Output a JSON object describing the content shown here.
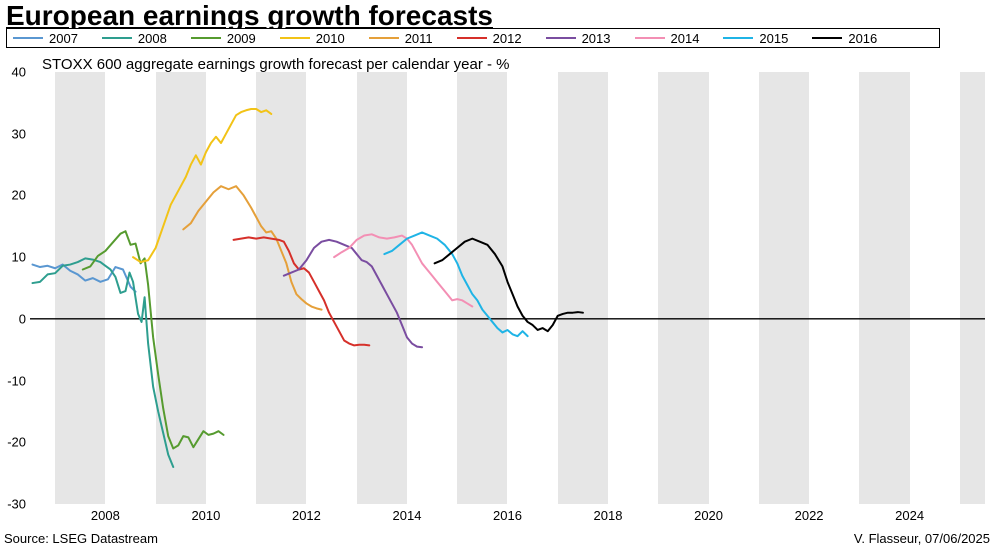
{
  "title": "European earnings growth forecasts",
  "subtitle": "STOXX 600 aggregate earnings growth forecast per calendar year - %",
  "footer_left": "Source: LSEG Datastream",
  "footer_right": "V. Flasseur, 07/06/2025",
  "chart": {
    "type": "line",
    "background_color": "#ffffff",
    "band_color": "#e6e6e6",
    "axis_color": "#000000",
    "zero_line_color": "#000000",
    "zero_line_width": 1.4,
    "line_width": 2,
    "title_fontsize": 28,
    "subtitle_fontsize": 15,
    "tick_fontsize": 13,
    "footer_fontsize": 13,
    "x_domain": [
      2006.5,
      2025.5
    ],
    "y_domain": [
      -30,
      40
    ],
    "y_ticks": [
      -30,
      -20,
      -10,
      0,
      10,
      20,
      30,
      40
    ],
    "x_ticks": [
      2008,
      2010,
      2012,
      2014,
      2016,
      2018,
      2020,
      2022,
      2024
    ],
    "x_bands_start": 2007,
    "series": [
      {
        "name": "2007",
        "color": "#5a97d1",
        "points": [
          [
            2006.55,
            8.8
          ],
          [
            2006.7,
            8.4
          ],
          [
            2006.85,
            8.6
          ],
          [
            2007.0,
            8.2
          ],
          [
            2007.15,
            8.8
          ],
          [
            2007.3,
            7.8
          ],
          [
            2007.45,
            7.2
          ],
          [
            2007.6,
            6.2
          ],
          [
            2007.75,
            6.6
          ],
          [
            2007.9,
            6.0
          ],
          [
            2008.05,
            6.4
          ],
          [
            2008.2,
            8.4
          ],
          [
            2008.35,
            8.0
          ],
          [
            2008.5,
            5.2
          ],
          [
            2008.6,
            4.4
          ]
        ]
      },
      {
        "name": "2008",
        "color": "#2e9e8f",
        "points": [
          [
            2006.55,
            5.8
          ],
          [
            2006.7,
            6.0
          ],
          [
            2006.85,
            7.2
          ],
          [
            2007.0,
            7.4
          ],
          [
            2007.15,
            8.6
          ],
          [
            2007.3,
            8.8
          ],
          [
            2007.45,
            9.2
          ],
          [
            2007.6,
            9.8
          ],
          [
            2007.75,
            9.6
          ],
          [
            2007.9,
            9.2
          ],
          [
            2008.0,
            8.6
          ],
          [
            2008.1,
            8.0
          ],
          [
            2008.2,
            6.8
          ],
          [
            2008.3,
            4.2
          ],
          [
            2008.4,
            4.5
          ],
          [
            2008.48,
            7.5
          ],
          [
            2008.55,
            6.0
          ],
          [
            2008.65,
            0.8
          ],
          [
            2008.72,
            -0.5
          ],
          [
            2008.78,
            3.5
          ],
          [
            2008.85,
            -4.0
          ],
          [
            2008.95,
            -11.0
          ],
          [
            2009.05,
            -15.0
          ],
          [
            2009.15,
            -18.5
          ],
          [
            2009.25,
            -22.0
          ],
          [
            2009.35,
            -24.0
          ]
        ]
      },
      {
        "name": "2009",
        "color": "#569b2f",
        "points": [
          [
            2007.55,
            8.0
          ],
          [
            2007.7,
            8.5
          ],
          [
            2007.85,
            10.2
          ],
          [
            2008.0,
            11.0
          ],
          [
            2008.15,
            12.4
          ],
          [
            2008.3,
            13.8
          ],
          [
            2008.4,
            14.2
          ],
          [
            2008.5,
            12.0
          ],
          [
            2008.6,
            12.2
          ],
          [
            2008.7,
            9.0
          ],
          [
            2008.78,
            9.8
          ],
          [
            2008.85,
            5.5
          ],
          [
            2008.95,
            -3.0
          ],
          [
            2009.05,
            -9.0
          ],
          [
            2009.15,
            -14.5
          ],
          [
            2009.25,
            -19.0
          ],
          [
            2009.35,
            -21.0
          ],
          [
            2009.45,
            -20.5
          ],
          [
            2009.55,
            -19.0
          ],
          [
            2009.65,
            -19.2
          ],
          [
            2009.75,
            -20.8
          ],
          [
            2009.85,
            -19.5
          ],
          [
            2009.95,
            -18.2
          ],
          [
            2010.05,
            -18.8
          ],
          [
            2010.15,
            -18.6
          ],
          [
            2010.25,
            -18.2
          ],
          [
            2010.35,
            -18.8
          ]
        ]
      },
      {
        "name": "2010",
        "color": "#f2c317",
        "points": [
          [
            2008.55,
            10.0
          ],
          [
            2008.7,
            9.2
          ],
          [
            2008.85,
            9.5
          ],
          [
            2009.0,
            11.5
          ],
          [
            2009.15,
            15.0
          ],
          [
            2009.3,
            18.5
          ],
          [
            2009.4,
            20.0
          ],
          [
            2009.5,
            21.5
          ],
          [
            2009.6,
            23.0
          ],
          [
            2009.7,
            25.0
          ],
          [
            2009.8,
            26.5
          ],
          [
            2009.9,
            25.0
          ],
          [
            2010.0,
            27.0
          ],
          [
            2010.1,
            28.5
          ],
          [
            2010.2,
            29.5
          ],
          [
            2010.3,
            28.5
          ],
          [
            2010.4,
            30.0
          ],
          [
            2010.5,
            31.5
          ],
          [
            2010.6,
            33.0
          ],
          [
            2010.7,
            33.5
          ],
          [
            2010.8,
            33.8
          ],
          [
            2010.9,
            34.0
          ],
          [
            2011.0,
            34.0
          ],
          [
            2011.1,
            33.5
          ],
          [
            2011.2,
            33.8
          ],
          [
            2011.3,
            33.2
          ]
        ]
      },
      {
        "name": "2011",
        "color": "#e5a03a",
        "points": [
          [
            2009.55,
            14.5
          ],
          [
            2009.7,
            15.5
          ],
          [
            2009.85,
            17.5
          ],
          [
            2010.0,
            19.0
          ],
          [
            2010.15,
            20.5
          ],
          [
            2010.3,
            21.5
          ],
          [
            2010.45,
            21.0
          ],
          [
            2010.6,
            21.5
          ],
          [
            2010.75,
            20.0
          ],
          [
            2010.9,
            18.0
          ],
          [
            2011.0,
            16.5
          ],
          [
            2011.1,
            15.0
          ],
          [
            2011.2,
            14.0
          ],
          [
            2011.3,
            14.2
          ],
          [
            2011.4,
            13.0
          ],
          [
            2011.5,
            11.0
          ],
          [
            2011.6,
            9.0
          ],
          [
            2011.7,
            6.0
          ],
          [
            2011.8,
            4.0
          ],
          [
            2011.9,
            3.2
          ],
          [
            2012.0,
            2.5
          ],
          [
            2012.1,
            2.0
          ],
          [
            2012.2,
            1.7
          ],
          [
            2012.3,
            1.5
          ]
        ]
      },
      {
        "name": "2012",
        "color": "#d6302a",
        "points": [
          [
            2010.55,
            12.8
          ],
          [
            2010.7,
            13.0
          ],
          [
            2010.85,
            13.2
          ],
          [
            2011.0,
            13.0
          ],
          [
            2011.15,
            13.2
          ],
          [
            2011.3,
            13.0
          ],
          [
            2011.45,
            12.8
          ],
          [
            2011.55,
            12.5
          ],
          [
            2011.65,
            11.0
          ],
          [
            2011.75,
            9.0
          ],
          [
            2011.85,
            8.0
          ],
          [
            2011.95,
            8.2
          ],
          [
            2012.05,
            7.5
          ],
          [
            2012.15,
            6.0
          ],
          [
            2012.25,
            4.5
          ],
          [
            2012.35,
            3.0
          ],
          [
            2012.45,
            1.0
          ],
          [
            2012.55,
            -0.5
          ],
          [
            2012.65,
            -2.0
          ],
          [
            2012.75,
            -3.5
          ],
          [
            2012.85,
            -4.0
          ],
          [
            2012.95,
            -4.3
          ],
          [
            2013.05,
            -4.2
          ],
          [
            2013.15,
            -4.2
          ],
          [
            2013.25,
            -4.3
          ]
        ]
      },
      {
        "name": "2013",
        "color": "#7a4da0",
        "points": [
          [
            2011.55,
            7.0
          ],
          [
            2011.7,
            7.5
          ],
          [
            2011.85,
            8.0
          ],
          [
            2012.0,
            9.5
          ],
          [
            2012.15,
            11.5
          ],
          [
            2012.3,
            12.5
          ],
          [
            2012.45,
            12.8
          ],
          [
            2012.6,
            12.5
          ],
          [
            2012.75,
            12.0
          ],
          [
            2012.9,
            11.5
          ],
          [
            2013.0,
            10.5
          ],
          [
            2013.1,
            9.5
          ],
          [
            2013.2,
            9.2
          ],
          [
            2013.3,
            8.5
          ],
          [
            2013.4,
            7.0
          ],
          [
            2013.5,
            5.5
          ],
          [
            2013.6,
            4.0
          ],
          [
            2013.7,
            2.5
          ],
          [
            2013.8,
            1.0
          ],
          [
            2013.9,
            -1.0
          ],
          [
            2014.0,
            -3.0
          ],
          [
            2014.1,
            -4.0
          ],
          [
            2014.2,
            -4.5
          ],
          [
            2014.3,
            -4.6
          ]
        ]
      },
      {
        "name": "2014",
        "color": "#f38fb4",
        "points": [
          [
            2012.55,
            10.0
          ],
          [
            2012.7,
            10.8
          ],
          [
            2012.85,
            11.5
          ],
          [
            2013.0,
            12.8
          ],
          [
            2013.15,
            13.5
          ],
          [
            2013.3,
            13.7
          ],
          [
            2013.45,
            13.2
          ],
          [
            2013.6,
            13.0
          ],
          [
            2013.75,
            13.2
          ],
          [
            2013.9,
            13.5
          ],
          [
            2014.0,
            13.0
          ],
          [
            2014.1,
            12.0
          ],
          [
            2014.2,
            10.5
          ],
          [
            2014.3,
            9.0
          ],
          [
            2014.4,
            8.0
          ],
          [
            2014.5,
            7.0
          ],
          [
            2014.6,
            6.0
          ],
          [
            2014.7,
            5.0
          ],
          [
            2014.8,
            4.0
          ],
          [
            2014.9,
            3.0
          ],
          [
            2015.0,
            3.2
          ],
          [
            2015.1,
            3.0
          ],
          [
            2015.2,
            2.5
          ],
          [
            2015.3,
            2.0
          ]
        ]
      },
      {
        "name": "2015",
        "color": "#1fb4e6",
        "points": [
          [
            2013.55,
            10.5
          ],
          [
            2013.7,
            11.0
          ],
          [
            2013.85,
            12.0
          ],
          [
            2014.0,
            13.0
          ],
          [
            2014.15,
            13.5
          ],
          [
            2014.3,
            14.0
          ],
          [
            2014.45,
            13.5
          ],
          [
            2014.6,
            13.0
          ],
          [
            2014.75,
            12.0
          ],
          [
            2014.9,
            10.5
          ],
          [
            2015.0,
            9.0
          ],
          [
            2015.1,
            7.0
          ],
          [
            2015.2,
            5.5
          ],
          [
            2015.3,
            4.0
          ],
          [
            2015.4,
            3.0
          ],
          [
            2015.5,
            1.5
          ],
          [
            2015.6,
            0.5
          ],
          [
            2015.7,
            -0.5
          ],
          [
            2015.8,
            -1.5
          ],
          [
            2015.9,
            -2.2
          ],
          [
            2016.0,
            -1.8
          ],
          [
            2016.1,
            -2.5
          ],
          [
            2016.2,
            -2.8
          ],
          [
            2016.3,
            -2.0
          ],
          [
            2016.4,
            -2.8
          ]
        ]
      },
      {
        "name": "2016",
        "color": "#000000",
        "points": [
          [
            2014.55,
            9.0
          ],
          [
            2014.7,
            9.5
          ],
          [
            2014.85,
            10.5
          ],
          [
            2015.0,
            11.5
          ],
          [
            2015.15,
            12.5
          ],
          [
            2015.3,
            13.0
          ],
          [
            2015.45,
            12.5
          ],
          [
            2015.6,
            12.0
          ],
          [
            2015.75,
            10.5
          ],
          [
            2015.9,
            8.5
          ],
          [
            2016.0,
            6.0
          ],
          [
            2016.1,
            4.0
          ],
          [
            2016.2,
            2.0
          ],
          [
            2016.3,
            0.5
          ],
          [
            2016.4,
            -0.5
          ],
          [
            2016.5,
            -1.0
          ],
          [
            2016.6,
            -1.8
          ],
          [
            2016.7,
            -1.5
          ],
          [
            2016.8,
            -2.0
          ],
          [
            2016.9,
            -1.0
          ],
          [
            2017.0,
            0.5
          ],
          [
            2017.1,
            0.8
          ],
          [
            2017.2,
            1.0
          ],
          [
            2017.3,
            1.0
          ],
          [
            2017.4,
            1.1
          ],
          [
            2017.5,
            1.0
          ]
        ]
      }
    ]
  }
}
